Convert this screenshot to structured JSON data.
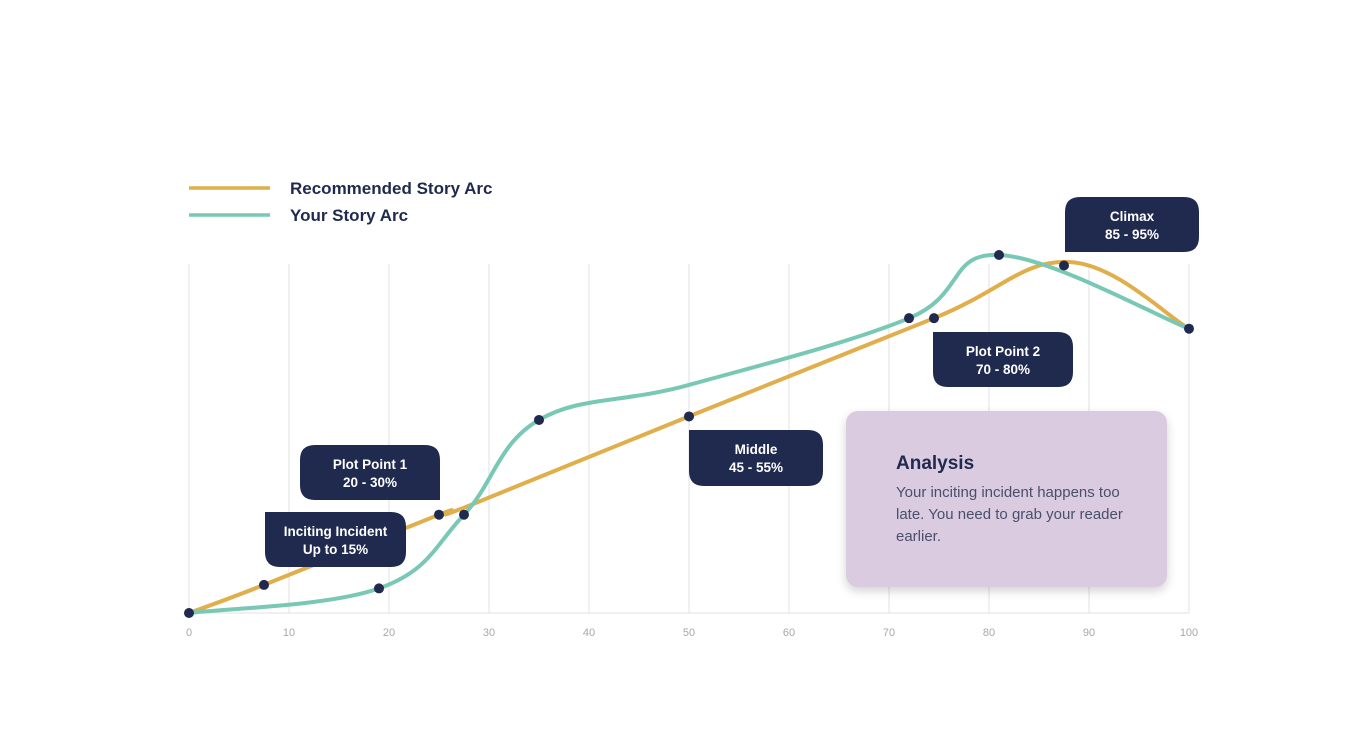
{
  "colors": {
    "recommended": "#e0ae4a",
    "yours": "#79c8b6",
    "callout_bg": "#1f2a4e",
    "point": "#1f2a4e",
    "grid": "#e6e6e6",
    "analysis_bg": "#dacbe1"
  },
  "legend": [
    {
      "label": "Recommended Story Arc",
      "series": "recommended"
    },
    {
      "label": "Your Story Arc",
      "series": "yours"
    }
  ],
  "analysis": {
    "title": "Analysis",
    "body": "Your inciting incident happens too late. You need to grab your reader earlier."
  },
  "chart_data": {
    "type": "line",
    "title": "",
    "xlabel": "",
    "ylabel": "",
    "xlim": [
      0,
      100
    ],
    "ylim": [
      0,
      100
    ],
    "x_ticks": [
      0,
      10,
      20,
      30,
      40,
      50,
      60,
      70,
      80,
      90,
      100
    ],
    "grid": "vertical",
    "legend_position": "top-left",
    "series": [
      {
        "name": "Recommended Story Arc",
        "key": "recommended",
        "points": [
          [
            0,
            0
          ],
          [
            7.5,
            8
          ],
          [
            25,
            28
          ],
          [
            27.5,
            30
          ],
          [
            50,
            56
          ],
          [
            74.5,
            84
          ],
          [
            88,
            100
          ],
          [
            100,
            81
          ]
        ],
        "markers": [
          [
            0,
            0
          ],
          [
            7.5,
            8
          ],
          [
            25,
            28
          ],
          [
            50,
            56
          ],
          [
            74.5,
            84
          ],
          [
            87.5,
            99
          ]
        ]
      },
      {
        "name": "Your Story Arc",
        "key": "yours",
        "points": [
          [
            0,
            0
          ],
          [
            19,
            7
          ],
          [
            27.5,
            28
          ],
          [
            35,
            55
          ],
          [
            50,
            65
          ],
          [
            72,
            84
          ],
          [
            81,
            102
          ],
          [
            100,
            81
          ]
        ],
        "markers": [
          [
            19,
            7
          ],
          [
            27.5,
            28
          ],
          [
            35,
            55
          ],
          [
            72,
            84
          ],
          [
            81,
            102
          ],
          [
            100,
            81
          ]
        ]
      }
    ],
    "annotations": [
      {
        "line1": "Inciting Incident",
        "line2": "Up to 15%"
      },
      {
        "line1": "Plot Point 1",
        "line2": "20 - 30%"
      },
      {
        "line1": "Middle",
        "line2": "45 - 55%"
      },
      {
        "line1": "Plot Point 2",
        "line2": "70 - 80%"
      },
      {
        "line1": "Climax",
        "line2": "85 - 95%"
      }
    ]
  }
}
